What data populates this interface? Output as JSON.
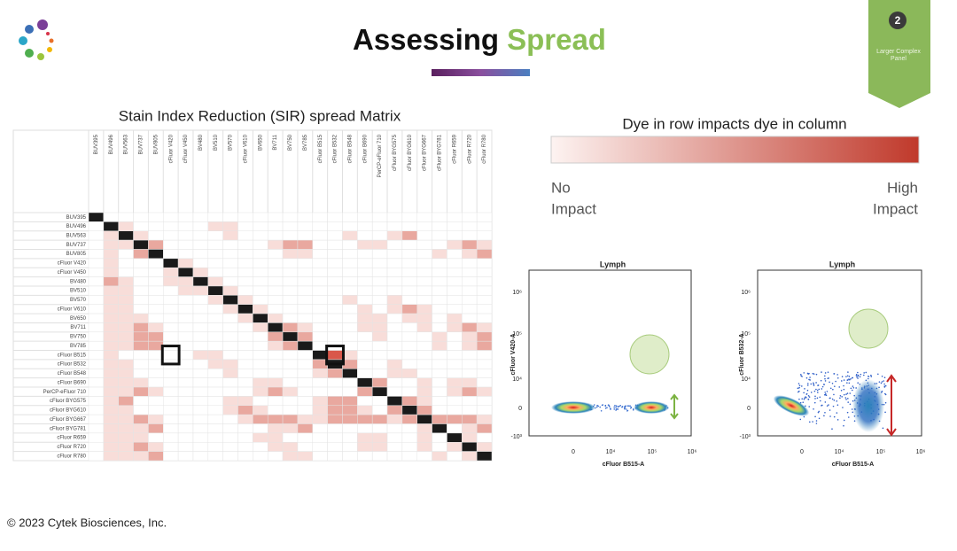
{
  "header": {
    "title_part1": "Assessing",
    "title_part2": "Spread",
    "badge_number": "2",
    "badge_text": [
      "Larger Complex",
      "Panel"
    ]
  },
  "matrix": {
    "title": "Stain Index Reduction (SIR) spread Matrix",
    "dyes": [
      "BUV395",
      "BUV496",
      "BUV563",
      "BUV737",
      "BUV805",
      "cFluor V420",
      "cFluor V450",
      "BV480",
      "BV510",
      "BV570",
      "cFluor V610",
      "BV650",
      "BV711",
      "BV750",
      "BV785",
      "cFluor B515",
      "cFluor B532",
      "cFluor B548",
      "cFluor B690",
      "PerCP-eFluor 710",
      "cFluor BYG575",
      "cFluor BYG610",
      "cFluor BYG667",
      "cFluor BYG781",
      "cFluor R659",
      "cFluor R720",
      "cFluor R780"
    ],
    "values": [
      [
        null,
        0,
        0,
        0,
        0,
        0,
        0,
        0,
        0,
        0,
        0,
        0,
        0,
        0,
        0,
        0,
        0,
        0,
        0,
        0,
        0,
        0,
        0,
        0,
        0,
        0,
        0
      ],
      [
        0,
        null,
        1,
        0,
        0,
        0,
        0,
        0,
        1,
        1,
        0,
        0,
        0,
        0,
        0,
        0,
        0,
        0,
        0,
        0,
        0,
        0,
        0,
        0,
        0,
        0,
        0
      ],
      [
        0,
        1,
        null,
        1,
        0,
        0,
        0,
        0,
        0,
        1,
        0,
        0,
        0,
        0,
        0,
        0,
        0,
        1,
        0,
        0,
        1,
        2,
        0,
        0,
        0,
        0,
        0
      ],
      [
        0,
        1,
        1,
        null,
        2,
        0,
        0,
        0,
        0,
        0,
        0,
        0,
        1,
        2,
        2,
        0,
        0,
        0,
        1,
        1,
        0,
        0,
        0,
        0,
        1,
        2,
        1
      ],
      [
        0,
        1,
        0,
        2,
        null,
        0,
        0,
        0,
        0,
        0,
        0,
        0,
        0,
        1,
        1,
        0,
        0,
        0,
        0,
        0,
        0,
        0,
        0,
        1,
        0,
        1,
        2
      ],
      [
        0,
        1,
        0,
        0,
        0,
        null,
        1,
        0,
        0,
        0,
        0,
        0,
        0,
        0,
        0,
        0,
        0,
        0,
        0,
        0,
        0,
        0,
        0,
        0,
        0,
        0,
        0
      ],
      [
        0,
        1,
        0,
        0,
        0,
        1,
        null,
        1,
        0,
        0,
        0,
        0,
        0,
        0,
        0,
        0,
        0,
        0,
        0,
        0,
        0,
        0,
        0,
        0,
        0,
        0,
        0
      ],
      [
        0,
        2,
        1,
        0,
        0,
        1,
        1,
        null,
        1,
        0,
        0,
        0,
        0,
        0,
        0,
        0,
        0,
        0,
        0,
        0,
        0,
        0,
        0,
        0,
        0,
        0,
        0
      ],
      [
        0,
        1,
        1,
        0,
        0,
        0,
        1,
        1,
        null,
        1,
        0,
        0,
        0,
        0,
        0,
        0,
        0,
        0,
        0,
        0,
        0,
        0,
        0,
        0,
        0,
        0,
        0
      ],
      [
        0,
        1,
        1,
        0,
        0,
        0,
        0,
        0,
        1,
        null,
        1,
        0,
        0,
        0,
        0,
        0,
        0,
        1,
        0,
        0,
        1,
        0,
        0,
        0,
        0,
        0,
        0
      ],
      [
        0,
        1,
        1,
        0,
        0,
        0,
        0,
        0,
        0,
        1,
        null,
        1,
        0,
        0,
        0,
        0,
        0,
        0,
        1,
        0,
        1,
        2,
        1,
        0,
        0,
        0,
        0
      ],
      [
        0,
        1,
        1,
        1,
        0,
        0,
        0,
        0,
        0,
        0,
        1,
        null,
        1,
        0,
        0,
        0,
        0,
        0,
        1,
        1,
        0,
        1,
        1,
        0,
        1,
        0,
        0
      ],
      [
        0,
        1,
        1,
        2,
        1,
        0,
        0,
        0,
        0,
        0,
        0,
        1,
        null,
        2,
        1,
        0,
        0,
        0,
        1,
        1,
        0,
        0,
        1,
        0,
        1,
        2,
        1
      ],
      [
        0,
        1,
        1,
        2,
        2,
        0,
        0,
        0,
        0,
        0,
        0,
        0,
        2,
        null,
        2,
        0,
        0,
        0,
        0,
        1,
        0,
        0,
        0,
        1,
        0,
        1,
        2
      ],
      [
        0,
        1,
        1,
        2,
        2,
        0,
        0,
        0,
        0,
        0,
        0,
        0,
        1,
        2,
        null,
        0,
        0,
        0,
        0,
        0,
        0,
        0,
        0,
        1,
        0,
        1,
        2
      ],
      [
        0,
        1,
        0,
        0,
        0,
        0,
        0,
        1,
        1,
        0,
        0,
        0,
        0,
        0,
        0,
        null,
        3,
        1,
        0,
        0,
        0,
        0,
        0,
        0,
        0,
        0,
        0
      ],
      [
        0,
        1,
        1,
        0,
        0,
        0,
        0,
        0,
        1,
        1,
        0,
        0,
        0,
        0,
        0,
        2,
        null,
        2,
        0,
        0,
        1,
        0,
        0,
        0,
        0,
        0,
        0
      ],
      [
        0,
        1,
        1,
        0,
        0,
        0,
        0,
        0,
        0,
        1,
        0,
        0,
        0,
        0,
        0,
        1,
        2,
        null,
        0,
        0,
        1,
        1,
        0,
        0,
        0,
        0,
        0
      ],
      [
        0,
        1,
        1,
        1,
        0,
        0,
        0,
        0,
        0,
        0,
        0,
        1,
        1,
        0,
        0,
        0,
        0,
        0,
        null,
        2,
        0,
        0,
        1,
        0,
        1,
        1,
        0
      ],
      [
        0,
        1,
        1,
        2,
        1,
        0,
        0,
        0,
        0,
        0,
        0,
        1,
        2,
        1,
        0,
        0,
        0,
        0,
        2,
        null,
        0,
        0,
        1,
        0,
        1,
        2,
        1
      ],
      [
        0,
        1,
        2,
        0,
        0,
        0,
        0,
        0,
        0,
        1,
        1,
        0,
        0,
        0,
        0,
        1,
        2,
        2,
        0,
        0,
        null,
        2,
        1,
        0,
        0,
        0,
        0
      ],
      [
        0,
        1,
        1,
        0,
        0,
        0,
        0,
        0,
        0,
        1,
        2,
        1,
        0,
        0,
        0,
        1,
        2,
        2,
        1,
        0,
        2,
        null,
        2,
        0,
        0,
        0,
        0
      ],
      [
        0,
        1,
        1,
        2,
        1,
        0,
        0,
        0,
        0,
        0,
        1,
        2,
        2,
        2,
        1,
        1,
        2,
        2,
        2,
        2,
        1,
        2,
        null,
        2,
        2,
        2,
        1
      ],
      [
        0,
        1,
        1,
        1,
        2,
        0,
        0,
        0,
        0,
        0,
        0,
        0,
        1,
        1,
        2,
        0,
        0,
        0,
        0,
        0,
        0,
        0,
        1,
        null,
        0,
        1,
        2
      ],
      [
        0,
        1,
        1,
        1,
        0,
        0,
        0,
        0,
        0,
        0,
        0,
        1,
        1,
        0,
        0,
        0,
        0,
        0,
        1,
        1,
        0,
        0,
        1,
        0,
        null,
        1,
        0
      ],
      [
        0,
        1,
        1,
        2,
        1,
        0,
        0,
        0,
        0,
        0,
        0,
        0,
        1,
        1,
        0,
        0,
        0,
        0,
        1,
        1,
        0,
        0,
        1,
        0,
        1,
        null,
        1
      ],
      [
        0,
        1,
        1,
        1,
        2,
        0,
        0,
        0,
        0,
        0,
        0,
        0,
        0,
        1,
        1,
        0,
        0,
        0,
        0,
        0,
        0,
        0,
        0,
        1,
        0,
        1,
        null
      ]
    ],
    "level_colors": [
      "#ffffff",
      "#f8ddd9",
      "#e9a89f",
      "#d9574a"
    ],
    "diagonal_color": "#1a1a1a"
  },
  "legend": {
    "title": "Dye in row impacts dye in column",
    "low_label": [
      "No",
      "Impact"
    ],
    "high_label": [
      "High",
      "Impact"
    ],
    "colors": [
      "#fdf3f1",
      "#c0392b"
    ]
  },
  "plots": [
    {
      "title": "Lymph",
      "x_label": "cFluor B515-A",
      "y_label": "cFluor V420-A",
      "xticks": [
        "0",
        "10⁴",
        "10⁵",
        "10⁶"
      ],
      "yticks": [
        "10⁶",
        "10⁵",
        "10⁴",
        "0",
        "-10³"
      ]
    },
    {
      "title": "Lymph",
      "x_label": "cFluor B515-A",
      "y_label": "cFluor B532-A",
      "xticks": [
        "0",
        "10⁴",
        "10⁵",
        "10⁶"
      ],
      "yticks": [
        "10⁶",
        "10⁵",
        "10⁴",
        "0",
        "-10³"
      ]
    }
  ],
  "footer": {
    "copyright": "© 2023 Cytek Biosciences, Inc."
  }
}
